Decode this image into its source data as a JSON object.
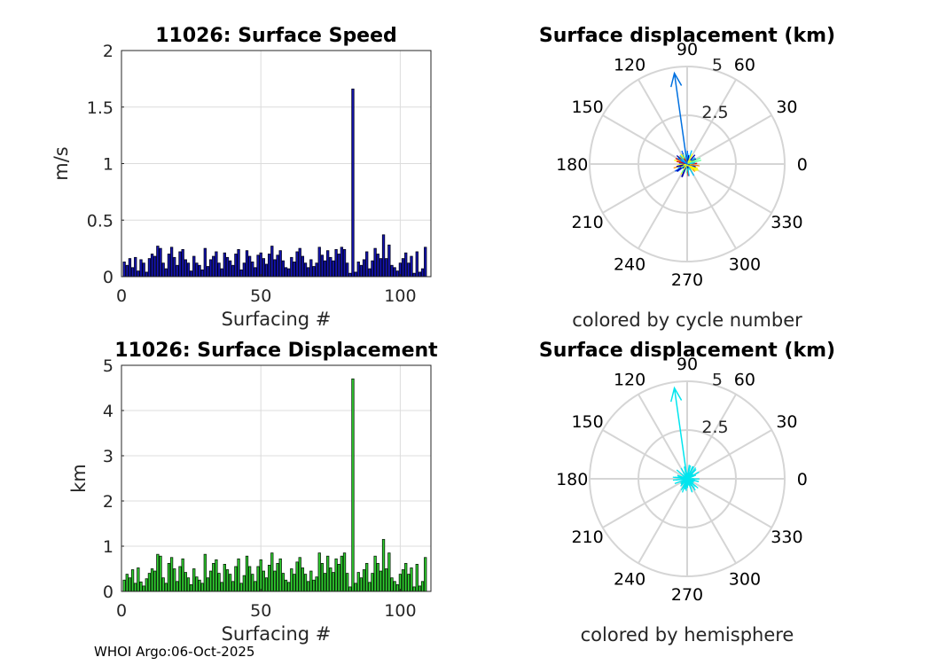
{
  "footer": "WHOI Argo:06-Oct-2025",
  "chart_data": [
    {
      "type": "bar",
      "title": "11026: Surface Speed",
      "xlabel": "Surfacing #",
      "ylabel": "m/s",
      "xlim": [
        0,
        111
      ],
      "ylim": [
        0,
        2
      ],
      "xticks": [
        0,
        50,
        100
      ],
      "yticks": [
        0,
        0.5,
        1,
        1.5,
        2
      ],
      "ytick_labels": [
        "0",
        "0.5",
        "1",
        "1.5",
        "2"
      ],
      "grid": true,
      "bar_color": "#1414b4",
      "series_start": 1,
      "values": [
        0.13,
        0.1,
        0.16,
        0.08,
        0.17,
        0.05,
        0.15,
        0.12,
        0.04,
        0.16,
        0.2,
        0.18,
        0.27,
        0.25,
        0.12,
        0.07,
        0.2,
        0.26,
        0.17,
        0.1,
        0.22,
        0.24,
        0.15,
        0.12,
        0.05,
        0.18,
        0.12,
        0.1,
        0.06,
        0.25,
        0.09,
        0.15,
        0.18,
        0.22,
        0.12,
        0.07,
        0.21,
        0.17,
        0.14,
        0.1,
        0.2,
        0.24,
        0.06,
        0.12,
        0.23,
        0.18,
        0.13,
        0.08,
        0.19,
        0.21,
        0.16,
        0.11,
        0.2,
        0.27,
        0.15,
        0.19,
        0.23,
        0.14,
        0.08,
        0.07,
        0.17,
        0.13,
        0.22,
        0.25,
        0.18,
        0.12,
        0.08,
        0.15,
        0.09,
        0.12,
        0.26,
        0.19,
        0.14,
        0.23,
        0.17,
        0.14,
        0.24,
        0.2,
        0.26,
        0.24,
        0.12,
        0.03,
        1.66,
        0.04,
        0.13,
        0.1,
        0.15,
        0.22,
        0.07,
        0.14,
        0.25,
        0.2,
        0.16,
        0.37,
        0.16,
        0.28,
        0.1,
        0.08,
        0.05,
        0.12,
        0.16,
        0.21,
        0.12,
        0.18,
        0.03,
        0.22,
        0.04,
        0.07,
        0.26
      ]
    },
    {
      "type": "polar",
      "title": "Surface displacement (km)",
      "xlabel": "colored by cycle number",
      "r_max": 5,
      "r_ticks": [
        2.5,
        5
      ],
      "r_tick_labels": [
        "2.5",
        "5"
      ],
      "theta_ticks": [
        0,
        30,
        60,
        90,
        120,
        150,
        180,
        210,
        240,
        270,
        300,
        330
      ],
      "coloring": "cycle number",
      "colormap": [
        "#0000aa",
        "#0060ff",
        "#00c0ff",
        "#60ffa0",
        "#ffff00",
        "#ff9000",
        "#e00000"
      ],
      "main_vector": {
        "direction_deg": 98,
        "length_km": 4.7,
        "color": "#0070e0"
      }
    },
    {
      "type": "bar",
      "title": "11026: Surface Displacement",
      "xlabel": "Surfacing #",
      "ylabel": "km",
      "xlim": [
        0,
        111
      ],
      "ylim": [
        0,
        5
      ],
      "xticks": [
        0,
        50,
        100
      ],
      "yticks": [
        0,
        1,
        2,
        3,
        4,
        5
      ],
      "ytick_labels": [
        "0",
        "1",
        "2",
        "3",
        "4",
        "5"
      ],
      "grid": true,
      "bar_color": "#30d030",
      "series_start": 1,
      "values": [
        0.25,
        0.38,
        0.3,
        0.48,
        0.18,
        0.52,
        0.21,
        0.12,
        0.28,
        0.4,
        0.5,
        0.45,
        0.82,
        0.78,
        0.3,
        0.18,
        0.62,
        0.75,
        0.5,
        0.22,
        0.55,
        0.72,
        0.42,
        0.3,
        0.15,
        0.5,
        0.32,
        0.25,
        0.18,
        0.82,
        0.3,
        0.45,
        0.62,
        0.7,
        0.4,
        0.2,
        0.6,
        0.48,
        0.38,
        0.22,
        0.55,
        0.72,
        0.18,
        0.35,
        0.78,
        0.55,
        0.38,
        0.22,
        0.55,
        0.7,
        0.45,
        0.3,
        0.58,
        0.85,
        0.45,
        0.62,
        0.72,
        0.4,
        0.25,
        0.2,
        0.5,
        0.38,
        0.65,
        0.75,
        0.52,
        0.38,
        0.22,
        0.45,
        0.25,
        0.32,
        0.85,
        0.62,
        0.4,
        0.78,
        0.52,
        0.42,
        0.72,
        0.6,
        0.78,
        0.85,
        0.4,
        0.1,
        4.7,
        0.18,
        0.42,
        0.3,
        0.48,
        0.62,
        0.2,
        0.4,
        0.78,
        0.62,
        0.45,
        1.15,
        0.5,
        0.85,
        0.3,
        0.22,
        0.15,
        0.38,
        0.48,
        0.62,
        0.38,
        0.52,
        0.1,
        0.6,
        0.12,
        0.22,
        0.75
      ]
    },
    {
      "type": "polar",
      "title": "Surface displacement (km)",
      "xlabel": "colored by hemisphere",
      "r_max": 5,
      "r_ticks": [
        2.5,
        5
      ],
      "r_tick_labels": [
        "2.5",
        "5"
      ],
      "theta_ticks": [
        0,
        30,
        60,
        90,
        120,
        150,
        180,
        210,
        240,
        270,
        300,
        330
      ],
      "coloring": "hemisphere",
      "colormap": [
        "#00e5ee"
      ],
      "main_vector": {
        "direction_deg": 98,
        "length_km": 4.7,
        "color": "#00e5ee"
      }
    }
  ]
}
